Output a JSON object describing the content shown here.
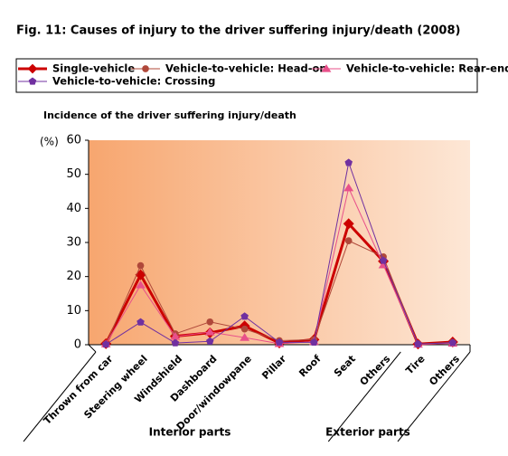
{
  "chart_data": {
    "type": "line",
    "title": "Fig. 11: Causes of injury to the driver suffering injury/death (2008)",
    "ylabel": "Incidence of the driver suffering injury/death",
    "yunit": "(%)",
    "categories": [
      "Thrown from car",
      "Steering wheel",
      "Windshield",
      "Dashboard",
      "Door/windowpane",
      "Pillar",
      "Roof",
      "Seat",
      "Others",
      "Tire",
      "Others"
    ],
    "groups": [
      {
        "label": "Interior parts"
      },
      {
        "label": "Exterior parts"
      }
    ],
    "series": [
      {
        "name": "Single-vehicle",
        "color": "#cc0000",
        "marker": "diamond",
        "values": [
          0.3,
          20.5,
          2.5,
          3.5,
          5.5,
          0.5,
          1.5,
          35.5,
          24.5,
          0.2,
          0.8
        ]
      },
      {
        "name": "Vehicle-to-vehicle: Head-on",
        "color": "#b0483a",
        "marker": "circle",
        "values": [
          0.2,
          23.2,
          3.2,
          6.7,
          4.6,
          1.2,
          1.5,
          30.5,
          25.8,
          0.2,
          0.7
        ]
      },
      {
        "name": "Vehicle-to-vehicle: Rear-end",
        "color": "#e8508a",
        "marker": "triangle",
        "values": [
          0.2,
          17.5,
          2.4,
          3.7,
          2.1,
          0.3,
          0.9,
          46,
          23.4,
          0.1,
          0.4
        ]
      },
      {
        "name": "Vehicle-to-vehicle: Crossing",
        "color": "#7030a0",
        "marker": "pentagon",
        "values": [
          0.1,
          6.6,
          0.5,
          1.0,
          8.3,
          0.7,
          0.7,
          53.4,
          24.7,
          0.2,
          0.6
        ]
      }
    ],
    "ylim": [
      0,
      60
    ],
    "yticks": [
      0,
      10,
      20,
      30,
      40,
      50,
      60
    ]
  }
}
